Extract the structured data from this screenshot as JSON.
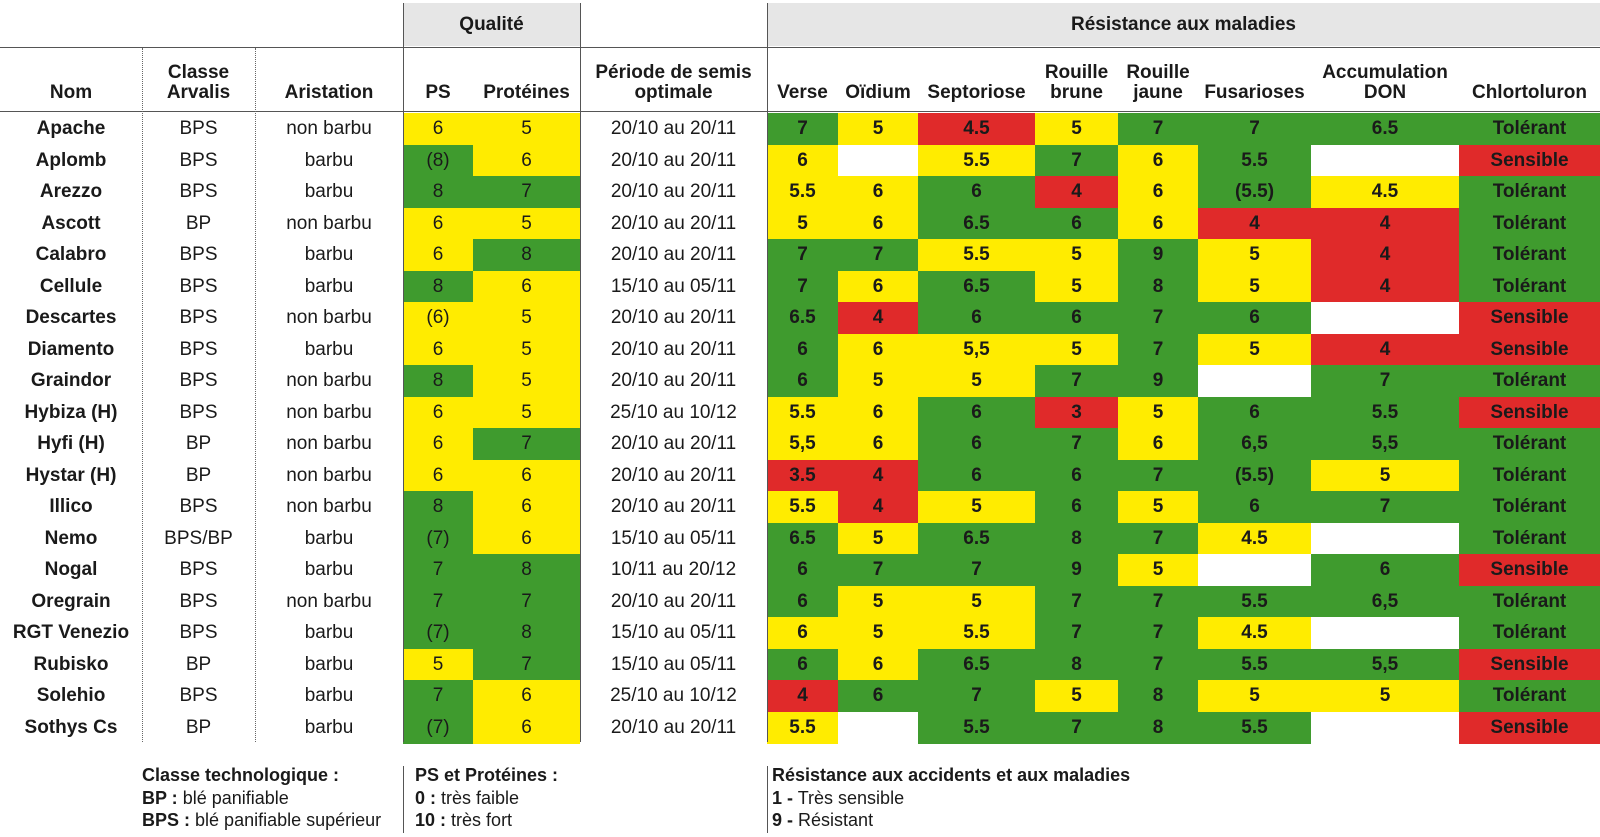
{
  "groups": {
    "qualite": "Qualité",
    "resistance": "Résistance aux maladies"
  },
  "headers": {
    "nom": "Nom",
    "classe": "Classe Arvalis",
    "aristation": "Aristation",
    "ps": "PS",
    "proteines": "Protéines",
    "periode": "Période de semis optimale",
    "verse": "Verse",
    "oidium": "Oïdium",
    "septoriose": "Septoriose",
    "rouille_brune": "Rouille brune",
    "rouille_jaune": "Rouille jaune",
    "fusarioses": "Fusarioses",
    "don": "Accumulation DON",
    "chlortoluron": "Chlortoluron"
  },
  "colors": {
    "g": "#3f9b2e",
    "y": "#ffec00",
    "r": "#e02a2a",
    "w": "#ffffff",
    "header_band": "#e6e6e6"
  },
  "chart_data": {
    "type": "table",
    "columns": [
      "Nom",
      "Classe Arvalis",
      "Aristation",
      "PS",
      "Protéines",
      "Période de semis optimale",
      "Verse",
      "Oïdium",
      "Septoriose",
      "Rouille brune",
      "Rouille jaune",
      "Fusarioses",
      "Accumulation DON",
      "Chlortoluron"
    ],
    "color_key": "g = vert, y = jaune, r = rouge, w = blanc (vide)",
    "rows": [
      {
        "nom": "Apache",
        "classe": "BPS",
        "aristation": "non barbu",
        "ps": "6",
        "ps_c": "y",
        "prot": "5",
        "prot_c": "y",
        "periode": "20/10 au 20/11",
        "verse": "7",
        "verse_c": "g",
        "oidium": "5",
        "oidium_c": "y",
        "sept": "4.5",
        "sept_c": "r",
        "rb": "5",
        "rb_c": "y",
        "rj": "7",
        "rj_c": "g",
        "fus": "7",
        "fus_c": "g",
        "don": "6.5",
        "don_c": "g",
        "chlo": "Tolérant",
        "chlo_c": "g"
      },
      {
        "nom": "Aplomb",
        "classe": "BPS",
        "aristation": "barbu",
        "ps": "(8)",
        "ps_c": "g",
        "prot": "6",
        "prot_c": "y",
        "periode": "20/10 au 20/11",
        "verse": "6",
        "verse_c": "y",
        "oidium": "",
        "oidium_c": "w",
        "sept": "5.5",
        "sept_c": "y",
        "rb": "7",
        "rb_c": "g",
        "rj": "6",
        "rj_c": "y",
        "fus": "5.5",
        "fus_c": "g",
        "don": "",
        "don_c": "w",
        "chlo": "Sensible",
        "chlo_c": "r"
      },
      {
        "nom": "Arezzo",
        "classe": "BPS",
        "aristation": "barbu",
        "ps": "8",
        "ps_c": "g",
        "prot": "7",
        "prot_c": "g",
        "periode": "20/10 au 20/11",
        "verse": "5.5",
        "verse_c": "y",
        "oidium": "6",
        "oidium_c": "y",
        "sept": "6",
        "sept_c": "g",
        "rb": "4",
        "rb_c": "r",
        "rj": "6",
        "rj_c": "y",
        "fus": "(5.5)",
        "fus_c": "g",
        "don": "4.5",
        "don_c": "y",
        "chlo": "Tolérant",
        "chlo_c": "g"
      },
      {
        "nom": "Ascott",
        "classe": "BP",
        "aristation": "non barbu",
        "ps": "6",
        "ps_c": "y",
        "prot": "5",
        "prot_c": "y",
        "periode": "20/10 au 20/11",
        "verse": "5",
        "verse_c": "y",
        "oidium": "6",
        "oidium_c": "y",
        "sept": "6.5",
        "sept_c": "g",
        "rb": "6",
        "rb_c": "g",
        "rj": "6",
        "rj_c": "y",
        "fus": "4",
        "fus_c": "r",
        "don": "4",
        "don_c": "r",
        "chlo": "Tolérant",
        "chlo_c": "g"
      },
      {
        "nom": "Calabro",
        "classe": "BPS",
        "aristation": "barbu",
        "ps": "6",
        "ps_c": "y",
        "prot": "8",
        "prot_c": "g",
        "periode": "20/10 au 20/11",
        "verse": "7",
        "verse_c": "g",
        "oidium": "7",
        "oidium_c": "g",
        "sept": "5.5",
        "sept_c": "y",
        "rb": "5",
        "rb_c": "y",
        "rj": "9",
        "rj_c": "g",
        "fus": "5",
        "fus_c": "y",
        "don": "4",
        "don_c": "r",
        "chlo": "Tolérant",
        "chlo_c": "g"
      },
      {
        "nom": "Cellule",
        "classe": "BPS",
        "aristation": "barbu",
        "ps": "8",
        "ps_c": "g",
        "prot": "6",
        "prot_c": "y",
        "periode": "15/10 au 05/11",
        "verse": "7",
        "verse_c": "g",
        "oidium": "6",
        "oidium_c": "y",
        "sept": "6.5",
        "sept_c": "g",
        "rb": "5",
        "rb_c": "y",
        "rj": "8",
        "rj_c": "g",
        "fus": "5",
        "fus_c": "y",
        "don": "4",
        "don_c": "r",
        "chlo": "Tolérant",
        "chlo_c": "g"
      },
      {
        "nom": "Descartes",
        "classe": "BPS",
        "aristation": "non barbu",
        "ps": "(6)",
        "ps_c": "y",
        "prot": "5",
        "prot_c": "y",
        "periode": "20/10 au 20/11",
        "verse": "6.5",
        "verse_c": "g",
        "oidium": "4",
        "oidium_c": "r",
        "sept": "6",
        "sept_c": "g",
        "rb": "6",
        "rb_c": "g",
        "rj": "7",
        "rj_c": "g",
        "fus": "6",
        "fus_c": "g",
        "don": "",
        "don_c": "w",
        "chlo": "Sensible",
        "chlo_c": "r"
      },
      {
        "nom": "Diamento",
        "classe": "BPS",
        "aristation": "barbu",
        "ps": "6",
        "ps_c": "y",
        "prot": "5",
        "prot_c": "y",
        "periode": "20/10 au 20/11",
        "verse": "6",
        "verse_c": "g",
        "oidium": "6",
        "oidium_c": "y",
        "sept": "5,5",
        "sept_c": "y",
        "rb": "5",
        "rb_c": "y",
        "rj": "7",
        "rj_c": "g",
        "fus": "5",
        "fus_c": "y",
        "don": "4",
        "don_c": "r",
        "chlo": "Sensible",
        "chlo_c": "r"
      },
      {
        "nom": "Graindor",
        "classe": "BPS",
        "aristation": "non barbu",
        "ps": "8",
        "ps_c": "g",
        "prot": "5",
        "prot_c": "y",
        "periode": "20/10 au 20/11",
        "verse": "6",
        "verse_c": "g",
        "oidium": "5",
        "oidium_c": "y",
        "sept": "5",
        "sept_c": "y",
        "rb": "7",
        "rb_c": "g",
        "rj": "9",
        "rj_c": "g",
        "fus": "",
        "fus_c": "w",
        "don": "7",
        "don_c": "g",
        "chlo": "Tolérant",
        "chlo_c": "g"
      },
      {
        "nom": "Hybiza (H)",
        "classe": "BPS",
        "aristation": "non barbu",
        "ps": "6",
        "ps_c": "y",
        "prot": "5",
        "prot_c": "y",
        "periode": "25/10 au 10/12",
        "verse": "5.5",
        "verse_c": "y",
        "oidium": "6",
        "oidium_c": "y",
        "sept": "6",
        "sept_c": "g",
        "rb": "3",
        "rb_c": "r",
        "rj": "5",
        "rj_c": "y",
        "fus": "6",
        "fus_c": "g",
        "don": "5.5",
        "don_c": "g",
        "chlo": "Sensible",
        "chlo_c": "r"
      },
      {
        "nom": "Hyfi (H)",
        "classe": "BP",
        "aristation": "non barbu",
        "ps": "6",
        "ps_c": "y",
        "prot": "7",
        "prot_c": "g",
        "periode": "20/10 au 20/11",
        "verse": "5,5",
        "verse_c": "y",
        "oidium": "6",
        "oidium_c": "y",
        "sept": "6",
        "sept_c": "g",
        "rb": "7",
        "rb_c": "g",
        "rj": "6",
        "rj_c": "y",
        "fus": "6,5",
        "fus_c": "g",
        "don": "5,5",
        "don_c": "g",
        "chlo": "Tolérant",
        "chlo_c": "g"
      },
      {
        "nom": "Hystar (H)",
        "classe": "BP",
        "aristation": "non barbu",
        "ps": "6",
        "ps_c": "y",
        "prot": "6",
        "prot_c": "y",
        "periode": "20/10 au 20/11",
        "verse": "3.5",
        "verse_c": "r",
        "oidium": "4",
        "oidium_c": "r",
        "sept": "6",
        "sept_c": "g",
        "rb": "6",
        "rb_c": "g",
        "rj": "7",
        "rj_c": "g",
        "fus": "(5.5)",
        "fus_c": "g",
        "don": "5",
        "don_c": "y",
        "chlo": "Tolérant",
        "chlo_c": "g"
      },
      {
        "nom": "Illico",
        "classe": "BPS",
        "aristation": "non barbu",
        "ps": "8",
        "ps_c": "g",
        "prot": "6",
        "prot_c": "y",
        "periode": "20/10 au 20/11",
        "verse": "5.5",
        "verse_c": "y",
        "oidium": "4",
        "oidium_c": "r",
        "sept": "5",
        "sept_c": "y",
        "rb": "6",
        "rb_c": "g",
        "rj": "5",
        "rj_c": "y",
        "fus": "6",
        "fus_c": "g",
        "don": "7",
        "don_c": "g",
        "chlo": "Tolérant",
        "chlo_c": "g"
      },
      {
        "nom": "Nemo",
        "classe": "BPS/BP",
        "aristation": "barbu",
        "ps": "(7)",
        "ps_c": "g",
        "prot": "6",
        "prot_c": "y",
        "periode": "15/10 au 05/11",
        "verse": "6.5",
        "verse_c": "g",
        "oidium": "5",
        "oidium_c": "y",
        "sept": "6.5",
        "sept_c": "g",
        "rb": "8",
        "rb_c": "g",
        "rj": "7",
        "rj_c": "g",
        "fus": "4.5",
        "fus_c": "y",
        "don": "",
        "don_c": "w",
        "chlo": "Tolérant",
        "chlo_c": "g"
      },
      {
        "nom": "Nogal",
        "classe": "BPS",
        "aristation": "barbu",
        "ps": "7",
        "ps_c": "g",
        "prot": "8",
        "prot_c": "g",
        "periode": "10/11 au 20/12",
        "verse": "6",
        "verse_c": "g",
        "oidium": "7",
        "oidium_c": "g",
        "sept": "7",
        "sept_c": "g",
        "rb": "9",
        "rb_c": "g",
        "rj": "5",
        "rj_c": "y",
        "fus": "",
        "fus_c": "w",
        "don": "6",
        "don_c": "g",
        "chlo": "Sensible",
        "chlo_c": "r"
      },
      {
        "nom": "Oregrain",
        "classe": "BPS",
        "aristation": "non barbu",
        "ps": "7",
        "ps_c": "g",
        "prot": "7",
        "prot_c": "g",
        "periode": "20/10 au 20/11",
        "verse": "6",
        "verse_c": "g",
        "oidium": "5",
        "oidium_c": "y",
        "sept": "5",
        "sept_c": "y",
        "rb": "7",
        "rb_c": "g",
        "rj": "7",
        "rj_c": "g",
        "fus": "5.5",
        "fus_c": "g",
        "don": "6,5",
        "don_c": "g",
        "chlo": "Tolérant",
        "chlo_c": "g"
      },
      {
        "nom": "RGT Venezio",
        "classe": "BPS",
        "aristation": "barbu",
        "ps": "(7)",
        "ps_c": "g",
        "prot": "8",
        "prot_c": "g",
        "periode": "15/10 au 05/11",
        "verse": "6",
        "verse_c": "y",
        "oidium": "5",
        "oidium_c": "y",
        "sept": "5.5",
        "sept_c": "y",
        "rb": "7",
        "rb_c": "g",
        "rj": "7",
        "rj_c": "g",
        "fus": "4.5",
        "fus_c": "y",
        "don": "",
        "don_c": "w",
        "chlo": "Tolérant",
        "chlo_c": "g"
      },
      {
        "nom": "Rubisko",
        "classe": "BP",
        "aristation": "barbu",
        "ps": "5",
        "ps_c": "y",
        "prot": "7",
        "prot_c": "g",
        "periode": "15/10 au 05/11",
        "verse": "6",
        "verse_c": "g",
        "oidium": "6",
        "oidium_c": "y",
        "sept": "6.5",
        "sept_c": "g",
        "rb": "8",
        "rb_c": "g",
        "rj": "7",
        "rj_c": "g",
        "fus": "5.5",
        "fus_c": "g",
        "don": "5,5",
        "don_c": "g",
        "chlo": "Sensible",
        "chlo_c": "r"
      },
      {
        "nom": "Solehio",
        "classe": "BPS",
        "aristation": "barbu",
        "ps": "7",
        "ps_c": "g",
        "prot": "6",
        "prot_c": "y",
        "periode": "25/10 au 10/12",
        "verse": "4",
        "verse_c": "r",
        "oidium": "6",
        "oidium_c": "g",
        "sept": "7",
        "sept_c": "g",
        "rb": "5",
        "rb_c": "y",
        "rj": "8",
        "rj_c": "g",
        "fus": "5",
        "fus_c": "y",
        "don": "5",
        "don_c": "y",
        "chlo": "Tolérant",
        "chlo_c": "g"
      },
      {
        "nom": "Sothys Cs",
        "classe": "BP",
        "aristation": "barbu",
        "ps": "(7)",
        "ps_c": "g",
        "prot": "6",
        "prot_c": "y",
        "periode": "20/10 au 20/11",
        "verse": "5.5",
        "verse_c": "y",
        "oidium": "",
        "oidium_c": "w",
        "sept": "5.5",
        "sept_c": "g",
        "rb": "7",
        "rb_c": "g",
        "rj": "8",
        "rj_c": "g",
        "fus": "5.5",
        "fus_c": "g",
        "don": "",
        "don_c": "w",
        "chlo": "Sensible",
        "chlo_c": "r"
      }
    ]
  },
  "legend": {
    "classe": {
      "title": "Classe technologique :",
      "l1_key": "BP :",
      "l1_val": "blé panifiable",
      "l2_key": "BPS :",
      "l2_val": "blé panifiable supérieur"
    },
    "ps": {
      "title": "PS et Protéines :",
      "l1_key": "0 :",
      "l1_val": "très faible",
      "l2_key": "10 :",
      "l2_val": "très fort"
    },
    "res": {
      "title": "Résistance aux accidents et aux maladies",
      "l1_key": "1 -",
      "l1_val": "Très sensible",
      "l2_key": "9 -",
      "l2_val": "Résistant"
    }
  }
}
